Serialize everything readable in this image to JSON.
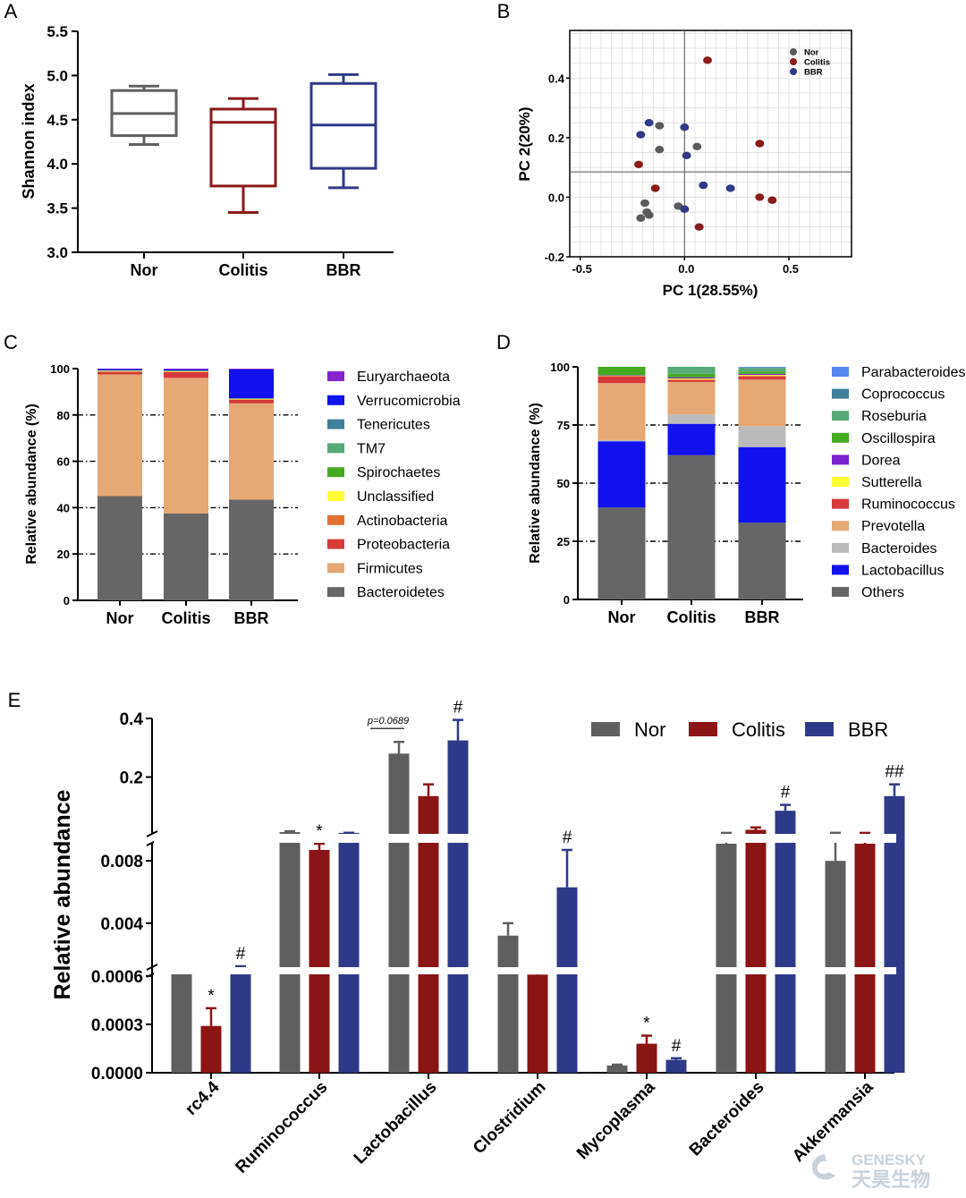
{
  "chart_data": [
    {
      "id": "A",
      "panel_label": "A",
      "type": "boxplot",
      "ylabel": "Shannon index",
      "ylim": [
        3.0,
        5.5
      ],
      "yticks": [
        "3.0",
        "3.5",
        "4.0",
        "4.5",
        "5.0",
        "5.5"
      ],
      "categories": [
        "Nor",
        "Colitis",
        "BBR"
      ],
      "colors": [
        "#606060",
        "#8b1a1a",
        "#2e3a87"
      ],
      "boxes": [
        {
          "min": 4.22,
          "q1": 4.32,
          "median": 4.57,
          "q3": 4.83,
          "max": 4.88
        },
        {
          "min": 3.45,
          "q1": 3.75,
          "median": 4.47,
          "q3": 4.62,
          "max": 4.74
        },
        {
          "min": 3.73,
          "q1": 3.95,
          "median": 4.44,
          "q3": 4.91,
          "max": 5.01
        }
      ]
    },
    {
      "id": "B",
      "panel_label": "B",
      "type": "scatter",
      "xlabel": "PC 1(28.55%)",
      "ylabel": "PC 2(20%)",
      "xlim": [
        -0.55,
        0.8
      ],
      "ylim": [
        -0.2,
        0.56
      ],
      "xticks": [
        "-0.5",
        "0.0",
        "0.5"
      ],
      "yticks": [
        "-0.2",
        "0.0",
        "0.2",
        "0.4"
      ],
      "crosshair": {
        "x": 0.0,
        "y": 0.085
      },
      "legend": [
        "Nor",
        "Colitis",
        "BBR"
      ],
      "series": [
        {
          "name": "Nor",
          "color": "#5a5a5a",
          "points": [
            [
              -0.12,
              0.24
            ],
            [
              -0.12,
              0.16
            ],
            [
              0.06,
              0.17
            ],
            [
              -0.19,
              -0.02
            ],
            [
              -0.18,
              -0.05
            ],
            [
              -0.17,
              -0.06
            ],
            [
              -0.21,
              -0.07
            ],
            [
              -0.03,
              -0.03
            ]
          ]
        },
        {
          "name": "Colitis",
          "color": "#8b1a1a",
          "points": [
            [
              0.11,
              0.46
            ],
            [
              0.36,
              0.18
            ],
            [
              -0.22,
              0.11
            ],
            [
              -0.14,
              0.03
            ],
            [
              0.36,
              0.0
            ],
            [
              0.42,
              -0.01
            ],
            [
              0.07,
              -0.1
            ]
          ]
        },
        {
          "name": "BBR",
          "color": "#2e3a87",
          "points": [
            [
              -0.17,
              0.25
            ],
            [
              -0.21,
              0.21
            ],
            [
              0.0,
              0.235
            ],
            [
              0.01,
              0.14
            ],
            [
              0.09,
              0.04
            ],
            [
              0.22,
              0.03
            ],
            [
              0.0,
              -0.04
            ]
          ]
        }
      ]
    },
    {
      "id": "C",
      "panel_label": "C",
      "type": "stacked_bar",
      "ylabel": "Relative abundance (%)",
      "ylim": [
        0,
        100
      ],
      "yticks": [
        "0",
        "20",
        "40",
        "60",
        "80",
        "100"
      ],
      "categories": [
        "Nor",
        "Colitis",
        "BBR"
      ],
      "legend_order": [
        "Euryarchaeota",
        "Verrucomicrobia",
        "Tenericutes",
        "TM7",
        "Spirochaetes",
        "Unclassified",
        "Actinobacteria",
        "Proteobacteria",
        "Firmicutes",
        "Bacteroidetes"
      ],
      "series": [
        {
          "name": "Bacteroidetes",
          "color": "#666666",
          "values": [
            45,
            37.5,
            43.5
          ]
        },
        {
          "name": "Firmicutes",
          "color": "#e6a874",
          "values": [
            52.5,
            58.5,
            41.5
          ]
        },
        {
          "name": "Proteobacteria",
          "color": "#d63a3a",
          "values": [
            1.0,
            2.5,
            1.5
          ]
        },
        {
          "name": "Actinobacteria",
          "color": "#e07030",
          "values": [
            0.3,
            0.2,
            0.2
          ]
        },
        {
          "name": "Unclassified",
          "color": "#ffff33",
          "values": [
            0.2,
            0.2,
            0.2
          ]
        },
        {
          "name": "Spirochaetes",
          "color": "#44aa22",
          "values": [
            0.1,
            0.1,
            0.1
          ]
        },
        {
          "name": "TM7",
          "color": "#55aa77",
          "values": [
            0.1,
            0.1,
            0.1
          ]
        },
        {
          "name": "Tenericutes",
          "color": "#3f7f99",
          "values": [
            0.1,
            0.1,
            0.1
          ]
        },
        {
          "name": "Verrucomicrobia",
          "color": "#1111ee",
          "values": [
            0.5,
            0.5,
            12.5
          ]
        },
        {
          "name": "Euryarchaeota",
          "color": "#8822cc",
          "values": [
            0.2,
            0.3,
            0.3
          ]
        }
      ]
    },
    {
      "id": "D",
      "panel_label": "D",
      "type": "stacked_bar",
      "ylabel": "Relative abundance (%)",
      "ylim": [
        0,
        100
      ],
      "yticks": [
        "0",
        "25",
        "50",
        "75",
        "100"
      ],
      "categories": [
        "Nor",
        "Colitis",
        "BBR"
      ],
      "legend_order": [
        "Parabacteroides",
        "Coprococcus",
        "Roseburia",
        "Oscillospira",
        "Dorea",
        "Sutterella",
        "Ruminococcus",
        "Prevotella",
        "Bacteroides",
        "Lactobacillus",
        "Others"
      ],
      "series": [
        {
          "name": "Others",
          "color": "#666666",
          "values": [
            39.5,
            62,
            33
          ]
        },
        {
          "name": "Lactobacillus",
          "color": "#1111ee",
          "values": [
            28.5,
            13.5,
            32.5
          ]
        },
        {
          "name": "Bacteroides",
          "color": "#bbbbbb",
          "values": [
            0.5,
            4,
            9
          ]
        },
        {
          "name": "Prevotella",
          "color": "#e6a874",
          "values": [
            24.5,
            14,
            20
          ]
        },
        {
          "name": "Ruminococcus",
          "color": "#d63a3a",
          "values": [
            3,
            1,
            1.5
          ]
        },
        {
          "name": "Sutterella",
          "color": "#ffff33",
          "values": [
            0.2,
            0.5,
            0.5
          ]
        },
        {
          "name": "Dorea",
          "color": "#7a22cc",
          "values": [
            0.2,
            0.5,
            0.5
          ]
        },
        {
          "name": "Oscillospira",
          "color": "#44aa22",
          "values": [
            3.6,
            1.5,
            1.0
          ]
        },
        {
          "name": "Roseburia",
          "color": "#55aa77",
          "values": [
            0,
            3,
            1.5
          ]
        },
        {
          "name": "Coprococcus",
          "color": "#3f7f99",
          "values": [
            0,
            0,
            0.2
          ]
        },
        {
          "name": "Parabacteroides",
          "color": "#5588ee",
          "values": [
            0,
            0,
            0.3
          ]
        }
      ]
    },
    {
      "id": "E",
      "panel_label": "E",
      "type": "bar",
      "ylabel": "Relative abundance",
      "legend": [
        "Nor",
        "Colitis",
        "BBR"
      ],
      "colors": [
        "#5f5f5f",
        "#8b1414",
        "#2e3a87"
      ],
      "axis_segments": [
        {
          "ticks": [
            "0.0000",
            "0.0003",
            "0.0006"
          ],
          "range": [
            0,
            0.00066
          ]
        },
        {
          "ticks": [
            "0.004",
            "0.008"
          ],
          "range": [
            0.00066,
            0.0091
          ]
        },
        {
          "ticks": [
            "0.2",
            "0.4"
          ],
          "range": [
            0.0091,
            0.4
          ]
        }
      ],
      "categories": [
        "rc4.4",
        "Ruminococcus",
        "Lactobacillus",
        "Clostridium",
        "Mycoplasma",
        "Bacteroides",
        "Akkermansia"
      ],
      "series": [
        {
          "name": "Nor",
          "values": [
            0.00064,
            0.012,
            0.28,
            0.0032,
            4.5e-05,
            0.0091,
            0.008
          ],
          "err": [
            2e-05,
            0.003,
            0.04,
            0.0008,
            5e-06,
            0.0002,
            0.0015
          ]
        },
        {
          "name": "Colitis",
          "values": [
            0.00029,
            0.0087,
            0.135,
            0.0007,
            0.00018,
            0.02,
            0.0091
          ],
          "err": [
            0.00011,
            0.0004,
            0.04,
            0.0004,
            5e-05,
            0.008,
            0.0002
          ]
        },
        {
          "name": "BBR",
          "values": [
            0.00063,
            0.0093,
            0.325,
            0.0063,
            8e-05,
            0.085,
            0.135
          ],
          "err": [
            3e-05,
            0.0004,
            0.07,
            0.0024,
            1e-05,
            0.02,
            0.04
          ]
        }
      ],
      "annotations": [
        {
          "category": "rc4.4",
          "series": "Colitis",
          "text": "*"
        },
        {
          "category": "rc4.4",
          "series": "BBR",
          "text": "#"
        },
        {
          "category": "Ruminococcus",
          "series": "Colitis",
          "text": "*"
        },
        {
          "category": "Lactobacillus",
          "series": "BBR",
          "text": "#"
        },
        {
          "category": "Lactobacillus",
          "series": "Nor",
          "text": "p=0.0689"
        },
        {
          "category": "Clostridium",
          "series": "BBR",
          "text": "#"
        },
        {
          "category": "Mycoplasma",
          "series": "Colitis",
          "text": "*"
        },
        {
          "category": "Mycoplasma",
          "series": "BBR",
          "text": "#"
        },
        {
          "category": "Bacteroides",
          "series": "BBR",
          "text": "#"
        },
        {
          "category": "Akkermansia",
          "series": "BBR",
          "text": "##"
        }
      ]
    }
  ],
  "watermark": {
    "line1": "GENESKY",
    "line2": "天昊生物"
  }
}
